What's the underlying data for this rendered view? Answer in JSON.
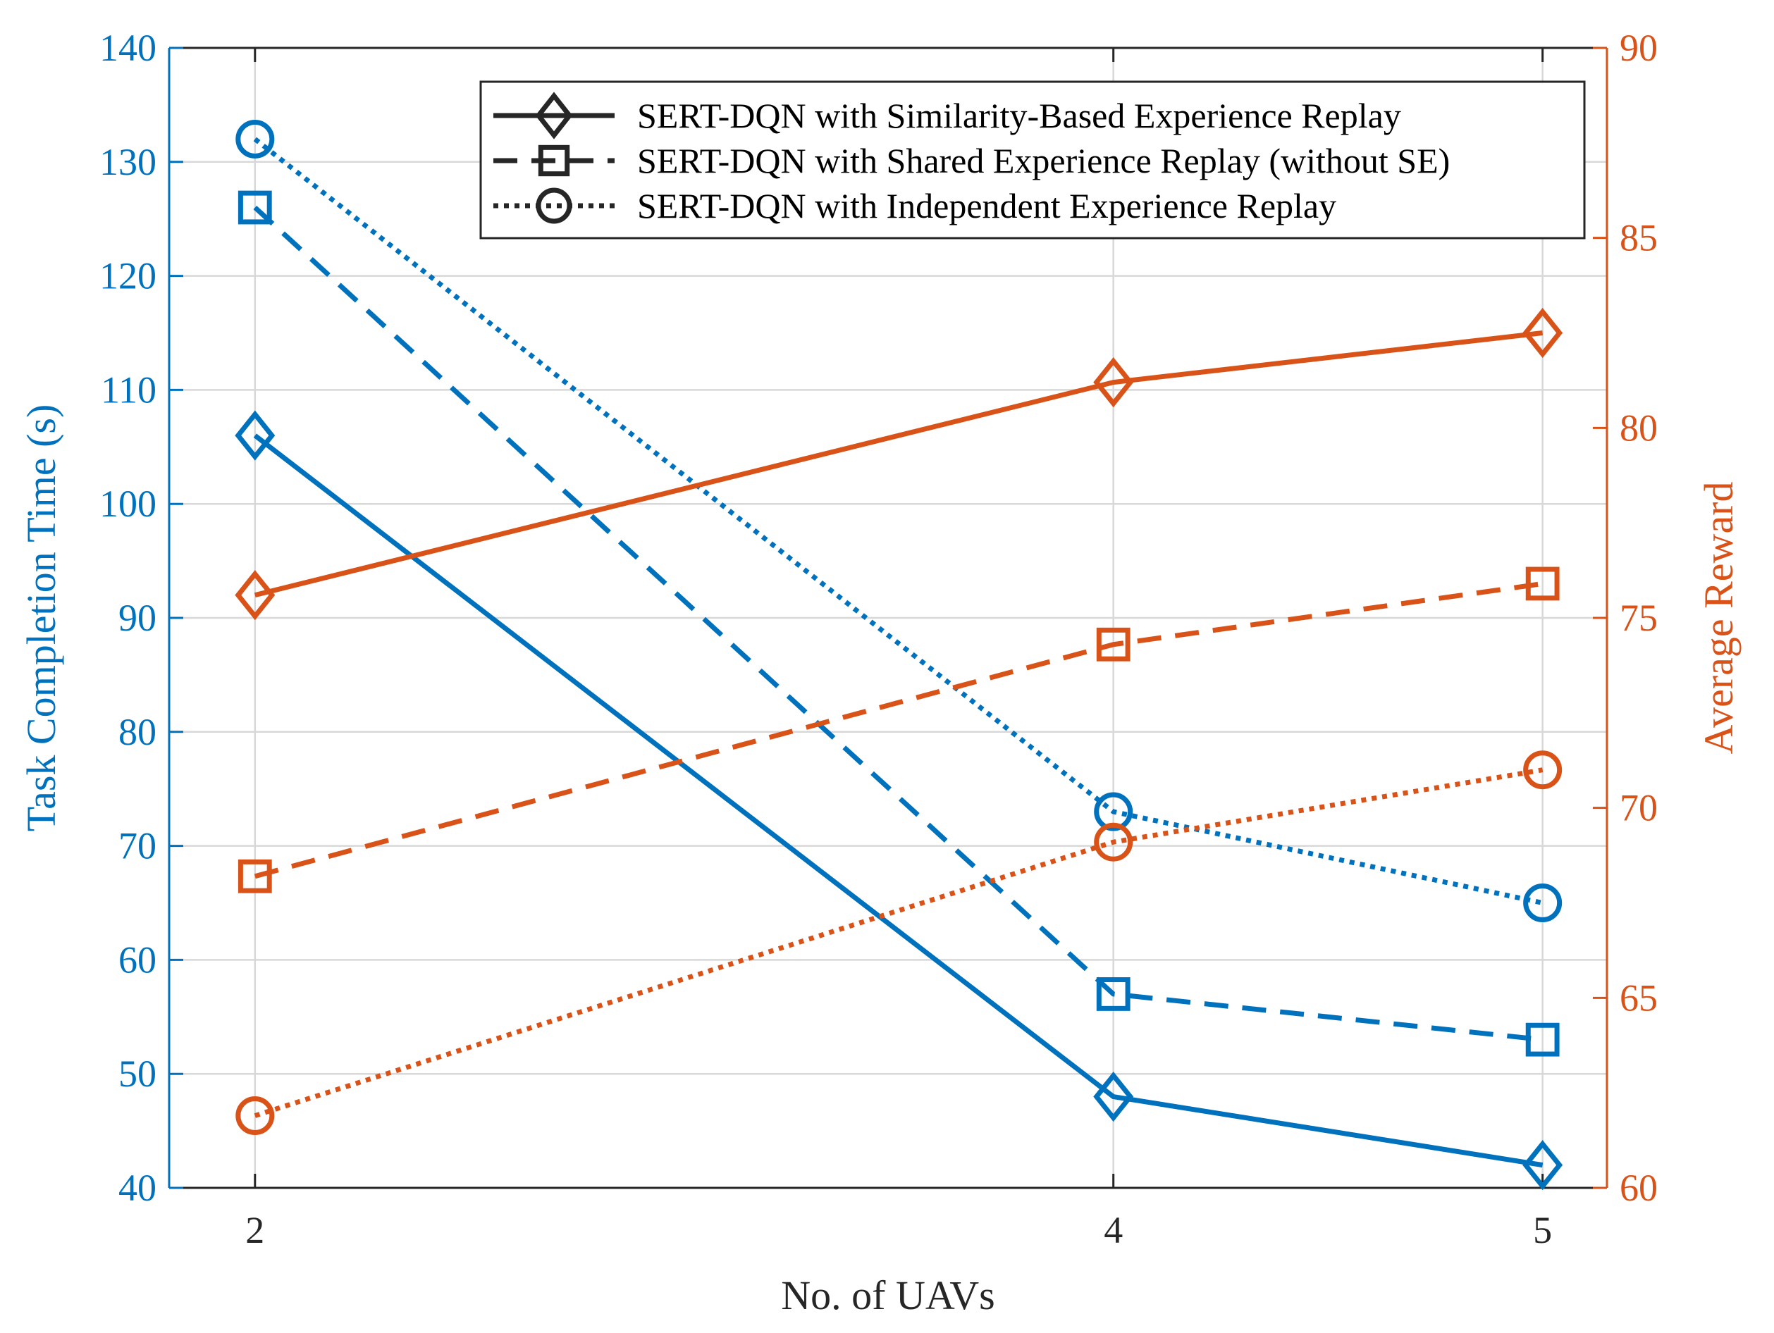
{
  "chart_data": {
    "type": "line",
    "x": [
      2,
      4,
      5
    ],
    "xlabel": "No. of UAVs",
    "xticks": [
      "2",
      "4",
      "5"
    ],
    "xlim": [
      1.8,
      5.15
    ],
    "left_axis": {
      "label": "Task Completion Time (s)",
      "ylim": [
        40,
        140
      ],
      "ticks": [
        "40",
        "50",
        "60",
        "70",
        "80",
        "90",
        "100",
        "110",
        "120",
        "130",
        "140"
      ],
      "color": "#0072BD"
    },
    "right_axis": {
      "label": "Average Reward",
      "ylim": [
        60,
        90
      ],
      "ticks": [
        "60",
        "65",
        "70",
        "75",
        "80",
        "85",
        "90"
      ],
      "color": "#D95319"
    },
    "grid": true,
    "legend_position": "top-right",
    "series": [
      {
        "name": "SERT-DQN with Similarity-Based Experience Replay",
        "axis": "left",
        "style": "solid",
        "marker": "diamond",
        "values": [
          106,
          48,
          42
        ]
      },
      {
        "name": "SERT-DQN with Shared Experience Replay (without SE)",
        "axis": "left",
        "style": "dashed",
        "marker": "square",
        "values": [
          126,
          57,
          53
        ]
      },
      {
        "name": "SERT-DQN with Independent Experience Replay",
        "axis": "left",
        "style": "dotted",
        "marker": "circle",
        "values": [
          132,
          73,
          65
        ]
      },
      {
        "name": "SERT-DQN with Similarity-Based Experience Replay",
        "axis": "right",
        "style": "solid",
        "marker": "diamond",
        "values": [
          75.6,
          81.2,
          82.5
        ]
      },
      {
        "name": "SERT-DQN with Shared Experience Replay (without SE)",
        "axis": "right",
        "style": "dashed",
        "marker": "square",
        "values": [
          68.2,
          74.3,
          75.9
        ]
      },
      {
        "name": "SERT-DQN with Independent Experience Replay",
        "axis": "right",
        "style": "dotted",
        "marker": "circle",
        "values": [
          61.9,
          69.1,
          71.0
        ]
      }
    ],
    "legend": [
      {
        "label": "SERT-DQN with Similarity-Based Experience Replay",
        "style": "solid",
        "marker": "diamond"
      },
      {
        "label": "SERT-DQN with Shared Experience Replay (without SE)",
        "style": "dashed",
        "marker": "square"
      },
      {
        "label": "SERT-DQN with Independent Experience Replay",
        "style": "dotted",
        "marker": "circle"
      }
    ]
  }
}
